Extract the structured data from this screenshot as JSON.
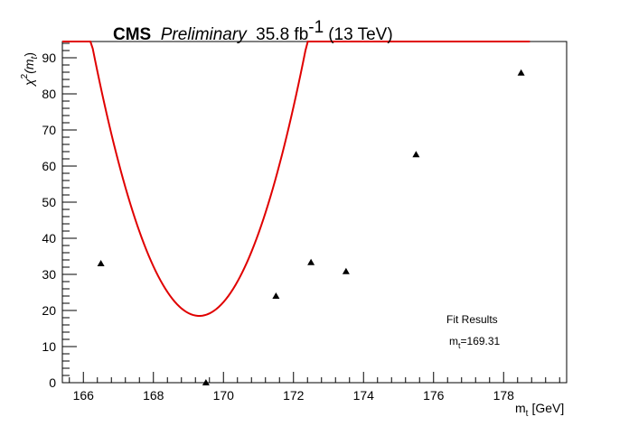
{
  "chart_data": {
    "type": "scatter",
    "title": {
      "experiment": "CMS",
      "status": "Preliminary",
      "lumi_value": "35.8 fb",
      "lumi_exponent": "-1",
      "energy": "(13 TeV)"
    },
    "xlabel": {
      "symbol": "m",
      "subscript": "t",
      "unit": "[GeV]"
    },
    "ylabel": {
      "symbol": "χ",
      "superscript": "2",
      "arg_open": "(m",
      "arg_subscript": "t",
      "arg_close": ")"
    },
    "xlim": [
      165.4,
      179.8
    ],
    "ylim": [
      0,
      94.5
    ],
    "xticks": [
      {
        "value": 166,
        "label": "166"
      },
      {
        "value": 168,
        "label": "168"
      },
      {
        "value": 170,
        "label": "170"
      },
      {
        "value": 172,
        "label": "172"
      },
      {
        "value": 174,
        "label": "174"
      },
      {
        "value": 176,
        "label": "176"
      },
      {
        "value": 178,
        "label": "178"
      }
    ],
    "yticks": [
      {
        "value": 0,
        "label": "0"
      },
      {
        "value": 10,
        "label": "10"
      },
      {
        "value": 20,
        "label": "20"
      },
      {
        "value": 30,
        "label": "30"
      },
      {
        "value": 40,
        "label": "40"
      },
      {
        "value": 50,
        "label": "50"
      },
      {
        "value": 60,
        "label": "60"
      },
      {
        "value": 70,
        "label": "70"
      },
      {
        "value": 80,
        "label": "80"
      },
      {
        "value": 90,
        "label": "90"
      }
    ],
    "points": [
      {
        "x": 166.5,
        "y": 33.0
      },
      {
        "x": 169.5,
        "y": 0.0
      },
      {
        "x": 171.5,
        "y": 24.0
      },
      {
        "x": 172.5,
        "y": 33.3
      },
      {
        "x": 173.5,
        "y": 30.8
      },
      {
        "x": 175.5,
        "y": 63.2
      },
      {
        "x": 178.5,
        "y": 85.8
      }
    ],
    "fit": {
      "type": "parabola",
      "x_min": 169.31,
      "y_min": 18.5,
      "curvature": 8.0,
      "x_range": [
        165.4,
        178.75
      ],
      "color": "#e00000"
    },
    "marker_color": "#000000",
    "annotation": {
      "header": "Fit Results",
      "param_symbol": "m",
      "param_subscript": "t",
      "param_value": "=169.31"
    },
    "grid": false
  }
}
